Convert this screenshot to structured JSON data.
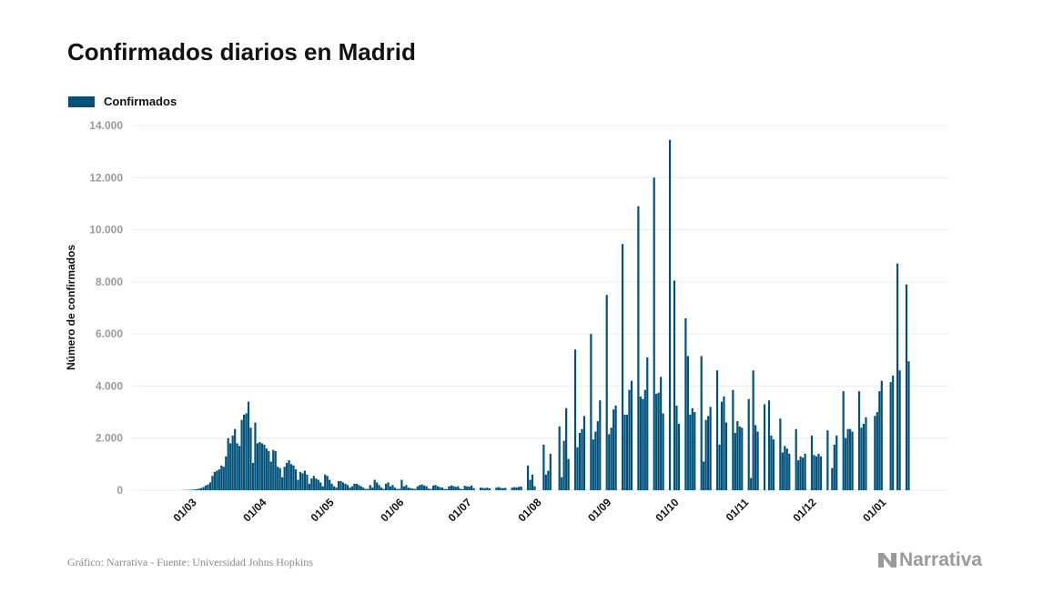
{
  "title": "Confirmados diarios en Madrid",
  "footer": "Gráfico: Narrativa - Fuente: Universidad Johns Hopkins",
  "logo_text": "Narrativa",
  "colors": {
    "bar": "#00527a",
    "grid": "#ececec",
    "tick_text": "#9a9a9a",
    "logo": "#9a9a9a"
  },
  "chart_data": {
    "type": "bar",
    "title": "Confirmados diarios en Madrid",
    "xlabel": "",
    "ylabel": "Número de confirmados",
    "ylim": [
      0,
      14000
    ],
    "grid": true,
    "legend": {
      "position": "top-left",
      "entries": [
        "Confirmados"
      ]
    },
    "y_ticks": [
      {
        "value": 0,
        "label": "0"
      },
      {
        "value": 2000,
        "label": "2.000"
      },
      {
        "value": 4000,
        "label": "4.000"
      },
      {
        "value": 6000,
        "label": "6.000"
      },
      {
        "value": 8000,
        "label": "8.000"
      },
      {
        "value": 10000,
        "label": "10.000"
      },
      {
        "value": 12000,
        "label": "12.000"
      },
      {
        "value": 14000,
        "label": "14.000"
      }
    ],
    "x_ticks": [
      {
        "date": "2020-03-01",
        "label": "01/03"
      },
      {
        "date": "2020-04-01",
        "label": "01/04"
      },
      {
        "date": "2020-05-01",
        "label": "01/05"
      },
      {
        "date": "2020-06-01",
        "label": "01/06"
      },
      {
        "date": "2020-07-01",
        "label": "01/07"
      },
      {
        "date": "2020-08-01",
        "label": "01/08"
      },
      {
        "date": "2020-09-01",
        "label": "01/09"
      },
      {
        "date": "2020-10-01",
        "label": "01/10"
      },
      {
        "date": "2020-11-01",
        "label": "01/11"
      },
      {
        "date": "2020-12-01",
        "label": "01/12"
      },
      {
        "date": "2021-01-01",
        "label": "01/01"
      }
    ],
    "series": [
      {
        "name": "Confirmados",
        "daily_by_month": [
          {
            "month": "2020-02",
            "first_day": 25,
            "values": [
              5,
              8,
              10,
              15,
              20
            ]
          },
          {
            "month": "2020-03",
            "first_day": 1,
            "values": [
              30,
              40,
              60,
              80,
              120,
              180,
              220,
              300,
              550,
              700,
              750,
              800,
              950,
              900,
              1300,
              2000,
              1800,
              2100,
              2350,
              1800,
              1700,
              2700,
              2900,
              2950,
              3400,
              2400,
              1050,
              2600,
              1800,
              1850,
              1800
            ]
          },
          {
            "month": "2020-04",
            "first_day": 1,
            "values": [
              1750,
              1600,
              1500,
              1100,
              1550,
              1500,
              900,
              850,
              500,
              900,
              1050,
              1150,
              1000,
              950,
              800,
              400,
              700,
              650,
              750,
              600,
              250,
              450,
              550,
              450,
              400,
              300,
              150,
              600,
              550,
              400
            ]
          },
          {
            "month": "2020-05",
            "first_day": 1,
            "values": [
              250,
              150,
              100,
              350,
              350,
              300,
              250,
              200,
              100,
              150,
              250,
              250,
              200,
              150,
              100,
              50,
              50,
              200,
              100,
              400,
              300,
              200,
              100,
              50,
              250,
              300,
              150,
              200,
              100,
              50,
              50
            ]
          },
          {
            "month": "2020-06",
            "first_day": 1,
            "values": [
              400,
              150,
              200,
              100,
              80,
              60,
              50,
              150,
              200,
              220,
              180,
              150,
              60,
              50,
              180,
              200,
              150,
              120,
              100,
              50,
              40,
              150,
              180,
              160,
              130,
              150,
              60,
              40,
              170,
              150
            ]
          },
          {
            "month": "2020-07",
            "first_day": 1,
            "values": [
              140,
              180,
              80,
              0,
              0,
              100,
              90,
              80,
              100,
              70,
              0,
              0,
              100,
              120,
              90,
              80,
              90,
              0,
              0,
              100,
              120,
              110,
              130,
              140,
              0,
              0,
              950,
              400,
              600,
              150,
              0
            ]
          },
          {
            "month": "2020-08",
            "first_day": 1,
            "values": [
              0,
              0,
              1750,
              600,
              750,
              1400,
              0,
              0,
              0,
              2450,
              500,
              1900,
              3150,
              1200,
              0,
              0,
              5400,
              1650,
              2200,
              2350,
              2850,
              0,
              0,
              6000,
              1950,
              2250,
              2650,
              3450,
              0,
              0,
              7500
            ]
          },
          {
            "month": "2020-09",
            "first_day": 1,
            "values": [
              2150,
              2400,
              3100,
              3250,
              0,
              0,
              9450,
              2900,
              2900,
              3850,
              4200,
              0,
              0,
              10900,
              3600,
              3500,
              3850,
              5100,
              0,
              0,
              12000,
              3700,
              3750,
              4350,
              2950,
              0,
              0,
              13450,
              0,
              8050
            ]
          },
          {
            "month": "2020-10",
            "first_day": 1,
            "values": [
              3250,
              2550,
              0,
              0,
              6600,
              5150,
              2900,
              3150,
              3000,
              0,
              0,
              5150,
              1100,
              2700,
              2850,
              3200,
              0,
              0,
              4600,
              1750,
              3400,
              3600,
              2600,
              0,
              0,
              3850,
              2200,
              2650,
              2450,
              2400,
              0
            ]
          },
          {
            "month": "2020-11",
            "first_day": 1,
            "values": [
              0,
              3500,
              470,
              4600,
              2500,
              2250,
              0,
              0,
              3300,
              0,
              3450,
              2100,
              1950,
              0,
              0,
              2750,
              1450,
              1700,
              1600,
              1400,
              0,
              0,
              2350,
              1150,
              1300,
              1250,
              1400,
              0,
              0,
              2100
            ]
          },
          {
            "month": "2020-12",
            "first_day": 1,
            "values": [
              1350,
              1300,
              1400,
              1300,
              0,
              0,
              2300,
              0,
              850,
              1750,
              2100,
              0,
              0,
              3800,
              2000,
              2350,
              2350,
              2250,
              0,
              0,
              3800,
              2400,
              2550,
              2800,
              0,
              0,
              0,
              2850,
              3000,
              3800,
              4200
            ]
          },
          {
            "month": "2021-01",
            "first_day": 1,
            "values": [
              0,
              0,
              0,
              4150,
              4400,
              0,
              8700,
              4600,
              0,
              0,
              7900,
              4950
            ]
          }
        ]
      }
    ]
  }
}
